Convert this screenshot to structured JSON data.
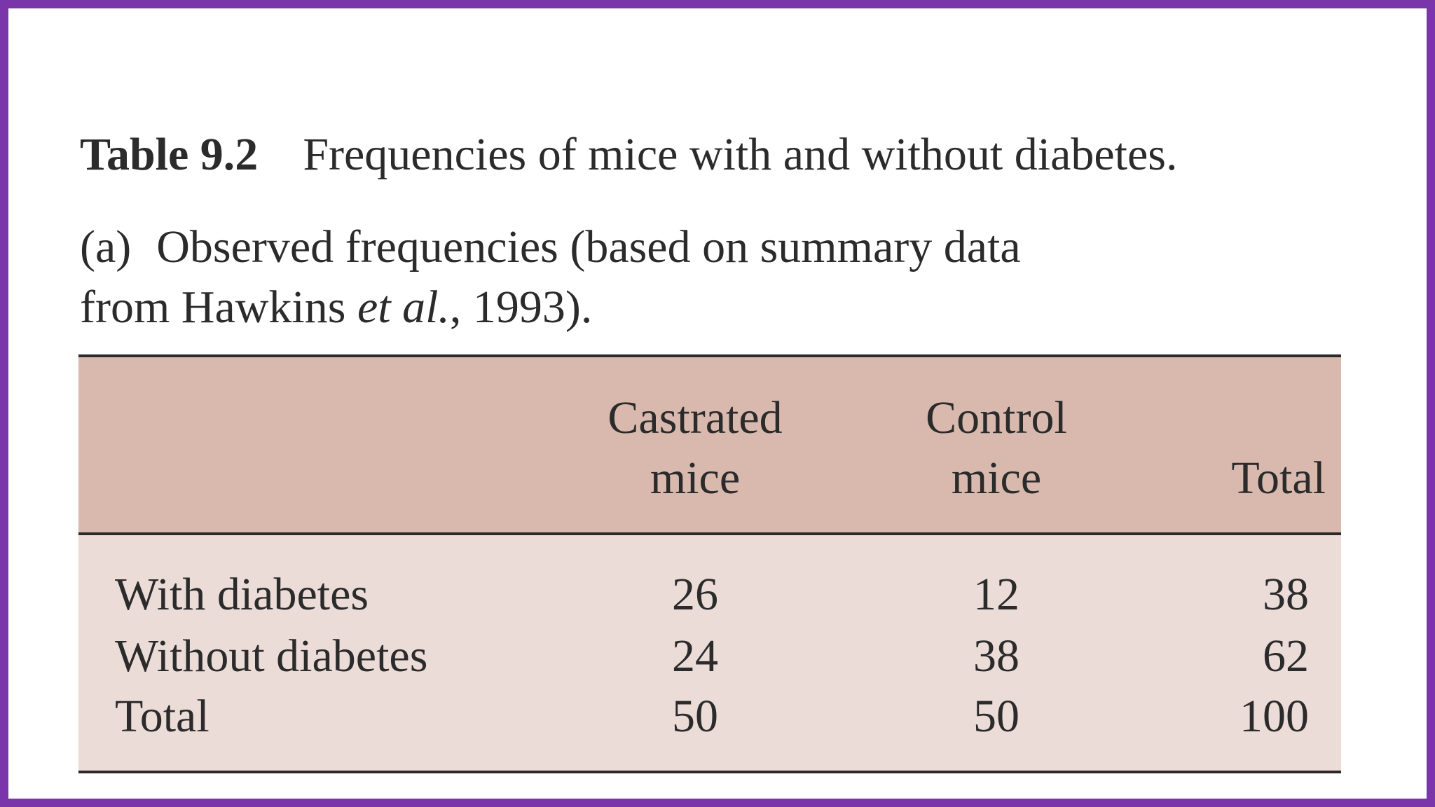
{
  "caption": {
    "table_label": "Table 9.2",
    "title": "Frequencies of mice with and without diabetes."
  },
  "subcaption": {
    "part_label": "(a)",
    "line1": "Observed frequencies (based on summary data",
    "line2_prefix": "from Hawkins ",
    "line2_italic": "et al.",
    "line2_suffix": ", 1993)."
  },
  "table": {
    "columns": [
      {
        "line1": "Castrated",
        "line2": "mice"
      },
      {
        "line1": "Control",
        "line2": "mice"
      },
      {
        "line1": "",
        "line2": "Total"
      }
    ],
    "rows": [
      {
        "label": "With diabetes",
        "values": [
          "26",
          "12",
          "38"
        ]
      },
      {
        "label": "Without diabetes",
        "values": [
          "24",
          "38",
          "62"
        ]
      },
      {
        "label": "Total",
        "values": [
          "50",
          "50",
          "100"
        ]
      }
    ]
  }
}
